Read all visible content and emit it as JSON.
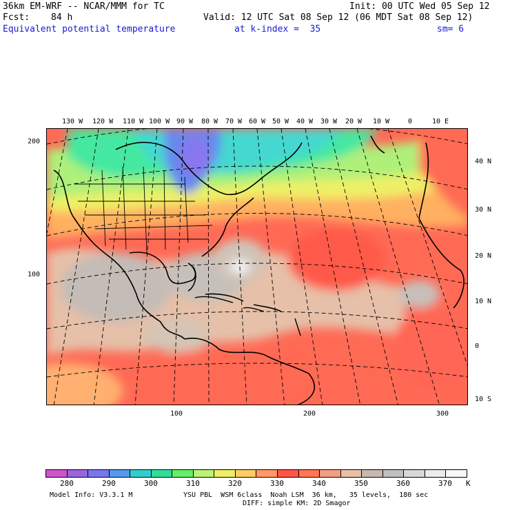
{
  "header": {
    "model_title": "36km EM-WRF -- NCAR/MMM for TC",
    "init": "Init: 00 UTC Wed 05 Sep 12",
    "fcst_label": "Fcst:",
    "fcst_hours": "84 h",
    "valid": "Valid: 12 UTC Sat 08 Sep 12 (06 MDT Sat 08 Sep 12)",
    "field": "Equivalent potential temperature",
    "level": "at k-index =  35",
    "smoothing": "sm= 6"
  },
  "map": {
    "top_lon_labels": [
      "130 W",
      "120 W",
      "110 W",
      "100 W",
      "90 W",
      "80 W",
      "70 W",
      "60 W",
      "50 W",
      "40 W",
      "30 W",
      "20 W",
      "10 W",
      "0",
      "10 E"
    ],
    "right_lat_labels": [
      "40 N",
      "30 N",
      "20 N",
      "10 N",
      "0",
      "10 S"
    ],
    "left_axis_labels": [
      "200",
      "100"
    ],
    "bottom_axis_labels": [
      "100",
      "200",
      "300"
    ]
  },
  "colorbar": {
    "colors": [
      "#cc55cc",
      "#9966dd",
      "#7777ee",
      "#5599ee",
      "#33cccc",
      "#33dd99",
      "#66ee66",
      "#bbf277",
      "#eeee66",
      "#ffcc66",
      "#ff9966",
      "#ff5544",
      "#ff7755",
      "#f0a080",
      "#e8c0a8",
      "#c8b8ae",
      "#c0c0c0",
      "#d8d8d8",
      "#ececec",
      "#f8f8f8"
    ],
    "labels": [
      "280",
      "290",
      "300",
      "310",
      "320",
      "330",
      "340",
      "350",
      "360",
      "370"
    ],
    "unit": "K"
  },
  "footer": {
    "model_info": "Model Info: V3.3.1 M",
    "physics": "YSU PBL  WSM 6class  Noah LSM  36 km,   35 levels,  180 sec",
    "diffusion": "DIFF: simple KM: 2D Smagor"
  }
}
